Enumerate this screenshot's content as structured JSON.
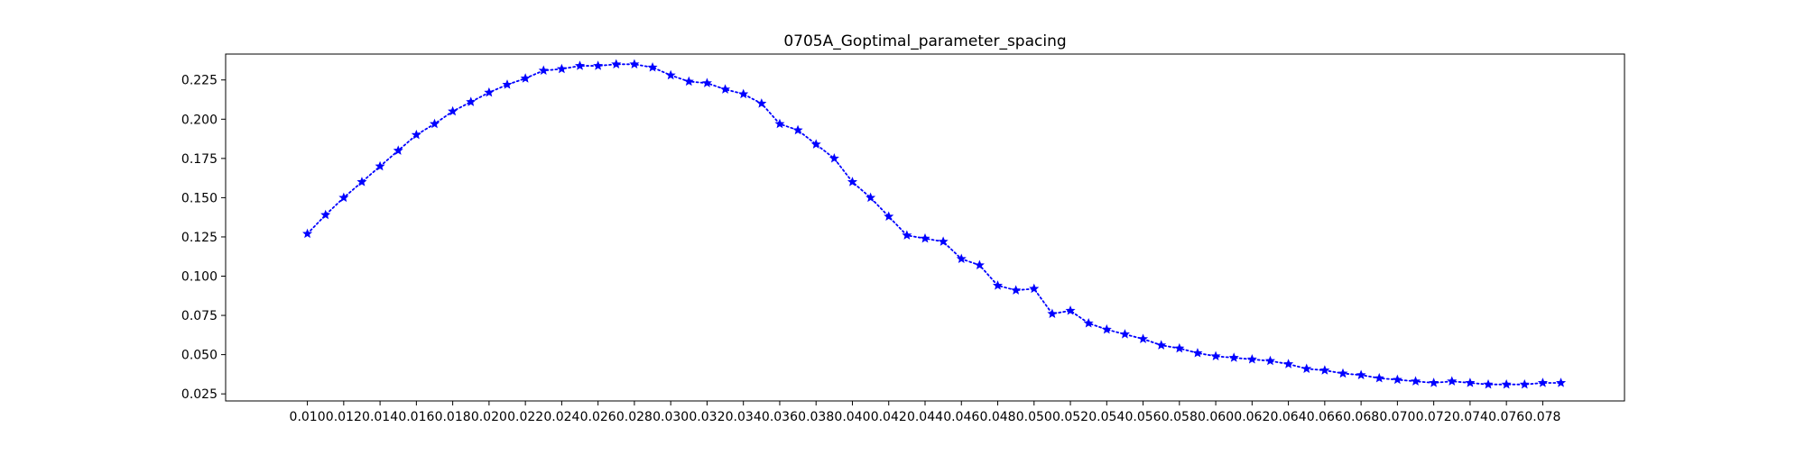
{
  "chart_data": {
    "type": "line",
    "title": "0705A_Goptimal_parameter_spacing",
    "xlabel": "",
    "ylabel": "",
    "xlim": [
      0.0055,
      0.0825
    ],
    "ylim": [
      0.0205,
      0.2415
    ],
    "x_ticks": [
      0.01,
      0.012,
      0.014,
      0.016,
      0.018,
      0.02,
      0.022,
      0.024,
      0.026,
      0.028,
      0.03,
      0.032,
      0.034,
      0.036,
      0.038,
      0.04,
      0.042,
      0.044,
      0.046,
      0.048,
      0.05,
      0.052,
      0.054,
      0.056,
      0.058,
      0.06,
      0.062,
      0.064,
      0.066,
      0.068,
      0.07,
      0.072,
      0.074,
      0.076,
      0.078
    ],
    "x_tick_labels": [
      "0.010",
      "0.012",
      "0.014",
      "0.016",
      "0.018",
      "0.020",
      "0.022",
      "0.024",
      "0.026",
      "0.028",
      "0.030",
      "0.032",
      "0.034",
      "0.036",
      "0.038",
      "0.040",
      "0.042",
      "0.044",
      "0.046",
      "0.048",
      "0.050",
      "0.052",
      "0.054",
      "0.056",
      "0.058",
      "0.060",
      "0.062",
      "0.064",
      "0.066",
      "0.068",
      "0.070",
      "0.072",
      "0.074",
      "0.076",
      "0.078"
    ],
    "y_ticks": [
      0.025,
      0.05,
      0.075,
      0.1,
      0.125,
      0.15,
      0.175,
      0.2,
      0.225
    ],
    "y_tick_labels": [
      "0.025",
      "0.050",
      "0.075",
      "0.100",
      "0.125",
      "0.150",
      "0.175",
      "0.200",
      "0.225"
    ],
    "grid": false,
    "series": [
      {
        "color": "#0000ff",
        "line_style": "dotted",
        "marker": "star",
        "x": [
          0.01,
          0.011,
          0.012,
          0.013,
          0.014,
          0.015,
          0.016,
          0.017,
          0.018,
          0.019,
          0.02,
          0.021,
          0.022,
          0.023,
          0.024,
          0.025,
          0.026,
          0.027,
          0.028,
          0.029,
          0.03,
          0.031,
          0.032,
          0.033,
          0.034,
          0.035,
          0.036,
          0.037,
          0.038,
          0.039,
          0.04,
          0.041,
          0.042,
          0.043,
          0.044,
          0.045,
          0.046,
          0.047,
          0.048,
          0.049,
          0.05,
          0.051,
          0.052,
          0.053,
          0.054,
          0.055,
          0.056,
          0.057,
          0.058,
          0.059,
          0.06,
          0.061,
          0.062,
          0.063,
          0.064,
          0.065,
          0.066,
          0.067,
          0.068,
          0.069,
          0.07,
          0.071,
          0.072,
          0.073,
          0.074,
          0.075,
          0.076,
          0.077,
          0.078,
          0.079
        ],
        "y": [
          0.127,
          0.139,
          0.15,
          0.16,
          0.17,
          0.18,
          0.19,
          0.197,
          0.205,
          0.211,
          0.217,
          0.222,
          0.226,
          0.231,
          0.232,
          0.234,
          0.234,
          0.235,
          0.235,
          0.233,
          0.228,
          0.224,
          0.223,
          0.219,
          0.216,
          0.21,
          0.197,
          0.193,
          0.184,
          0.175,
          0.16,
          0.15,
          0.138,
          0.126,
          0.124,
          0.122,
          0.111,
          0.107,
          0.094,
          0.091,
          0.092,
          0.076,
          0.078,
          0.07,
          0.066,
          0.063,
          0.06,
          0.056,
          0.054,
          0.051,
          0.049,
          0.048,
          0.047,
          0.046,
          0.044,
          0.041,
          0.04,
          0.038,
          0.037,
          0.035,
          0.034,
          0.033,
          0.032,
          0.033,
          0.032,
          0.031,
          0.031,
          0.031,
          0.032,
          0.032
        ]
      }
    ]
  }
}
